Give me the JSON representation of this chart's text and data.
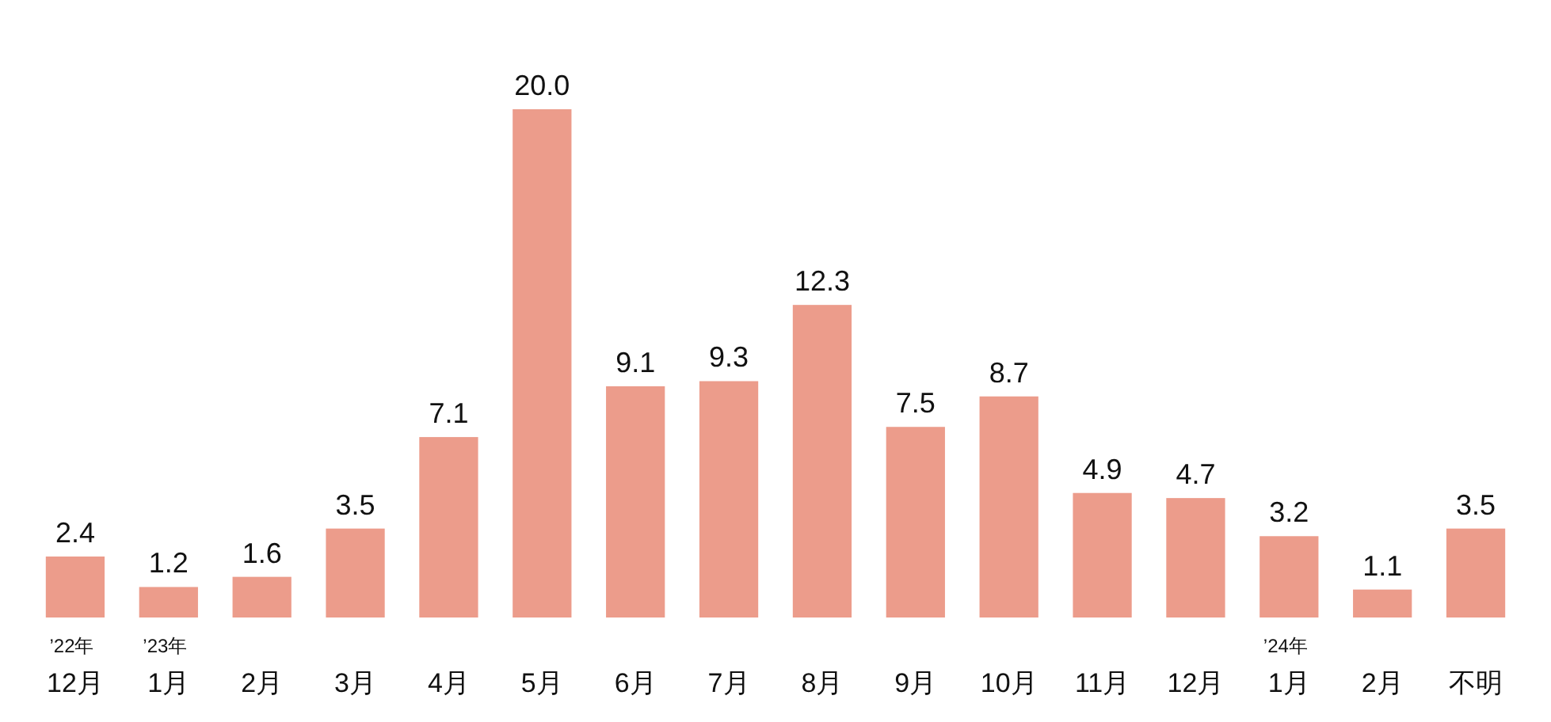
{
  "chart_data": {
    "type": "bar",
    "categories": [
      "’22年\n12月",
      "’23年\n1月",
      "2月",
      "3月",
      "4月",
      "5月",
      "6月",
      "7月",
      "8月",
      "9月",
      "10月",
      "11月",
      "12月",
      "’24年\n1月",
      "2月",
      "不明"
    ],
    "values": [
      2.4,
      1.2,
      1.6,
      3.5,
      7.1,
      20.0,
      9.1,
      9.3,
      12.3,
      7.5,
      8.7,
      4.9,
      4.7,
      3.2,
      1.1,
      3.5
    ],
    "value_labels": [
      "2.4",
      "1.2",
      "1.6",
      "3.5",
      "7.1",
      "20.0",
      "9.1",
      "9.3",
      "12.3",
      "7.5",
      "8.7",
      "4.9",
      "4.7",
      "3.2",
      "1.1",
      "3.5"
    ],
    "color": "#ec9c8b"
  }
}
